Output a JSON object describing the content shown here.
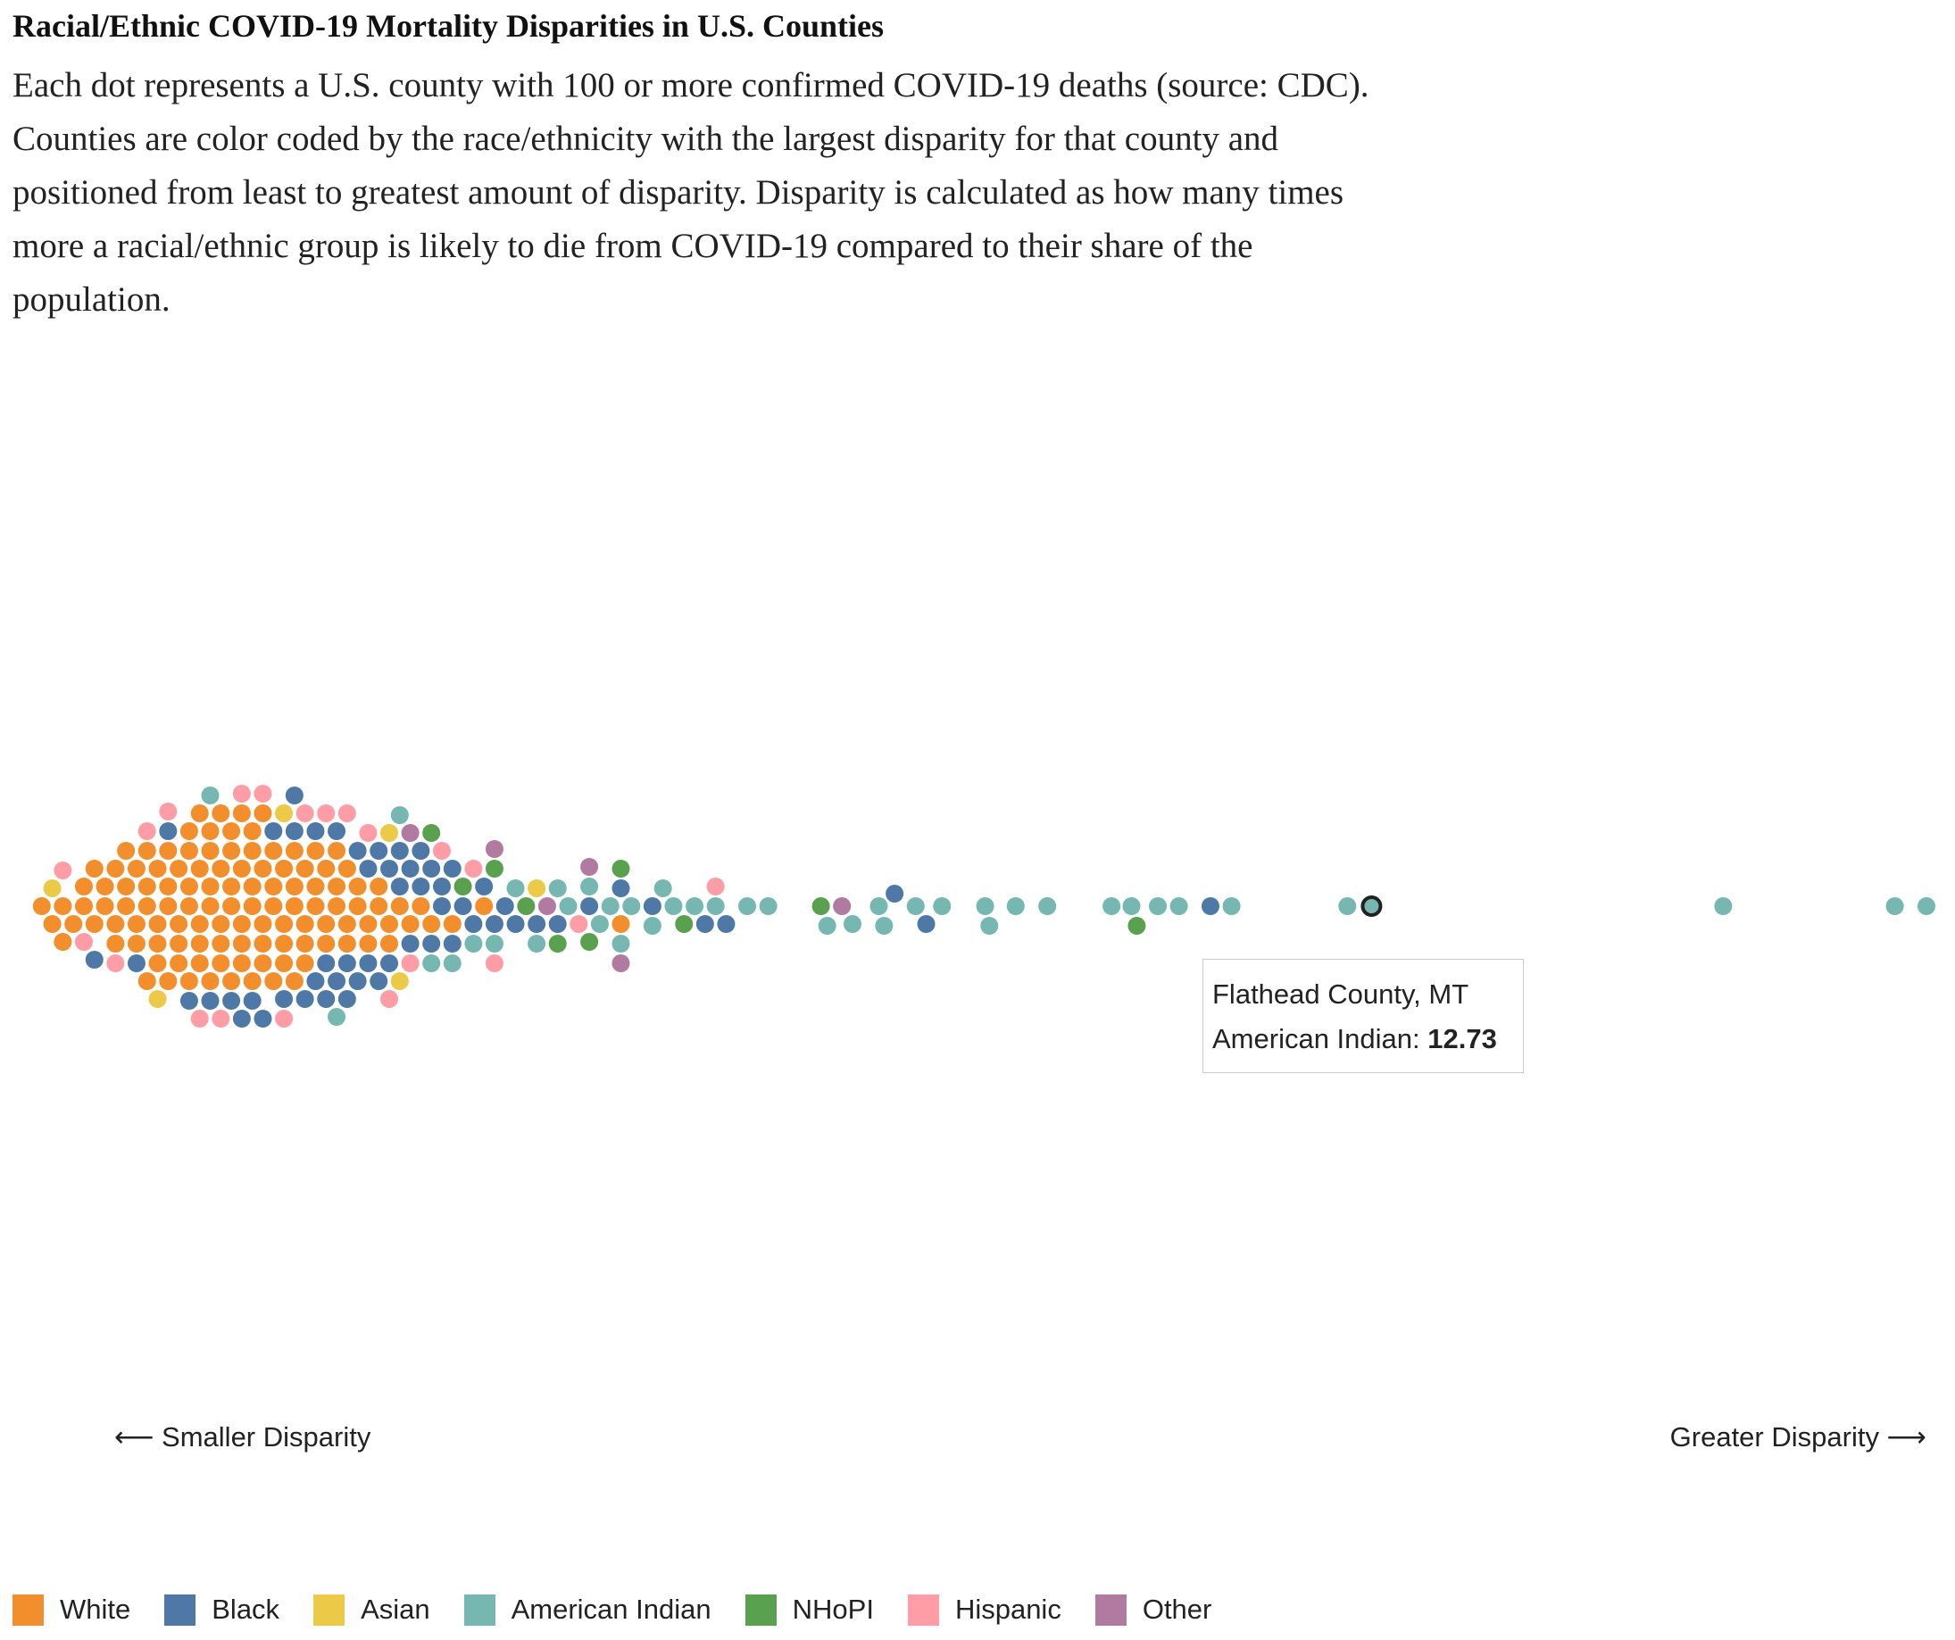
{
  "chart_data": {
    "type": "beeswarm",
    "title": "Racial/Ethnic COVID-19 Mortality Disparities in U.S. Counties",
    "subtitle": "Each dot represents a U.S. county with 100 or more confirmed COVID-19 deaths (source: CDC). Counties are color coded by the race/ethnicity with the largest disparity for that county and positioned from least to greatest amount of disparity. Disparity is calculated as how many times more a racial/ethnic group is likely to die from COVID-19 compared to their share of the population.",
    "left_label": "⟵ Smaller Disparity",
    "right_label": "Greater Disparity ⟶",
    "xlim": [
      0,
      18
    ],
    "legend": "bottom-left",
    "series": [
      {
        "name": "White",
        "color": "#f28e2b",
        "values": [
          0.1,
          0.2,
          0.3,
          0.3,
          0.4,
          0.5,
          0.5,
          0.6,
          0.6,
          0.7,
          0.7,
          0.8,
          0.8,
          0.8,
          0.9,
          0.9,
          0.9,
          1.0,
          1.0,
          1.0,
          1.1,
          1.1,
          1.1,
          1.1,
          1.2,
          1.2,
          1.2,
          1.2,
          1.3,
          1.3,
          1.3,
          1.3,
          1.4,
          1.4,
          1.4,
          1.4,
          1.5,
          1.5,
          1.5,
          1.5,
          1.5,
          1.6,
          1.6,
          1.6,
          1.6,
          1.6,
          1.7,
          1.7,
          1.7,
          1.7,
          1.7,
          1.8,
          1.8,
          1.8,
          1.8,
          1.8,
          1.9,
          1.9,
          1.9,
          1.9,
          1.9,
          2.0,
          2.0,
          2.0,
          2.0,
          2.0,
          2.1,
          2.1,
          2.1,
          2.1,
          2.1,
          2.2,
          2.2,
          2.2,
          2.2,
          2.2,
          2.3,
          2.3,
          2.3,
          2.3,
          2.4,
          2.4,
          2.4,
          2.4,
          2.5,
          2.5,
          2.5,
          2.5,
          2.6,
          2.6,
          2.6,
          2.6,
          2.7,
          2.7,
          2.7,
          2.8,
          2.8,
          2.8,
          2.9,
          2.9,
          2.9,
          3.0,
          3.0,
          3.0,
          3.1,
          3.1,
          3.2,
          3.2,
          3.3,
          3.3,
          3.4,
          3.4,
          3.5,
          3.6,
          3.7,
          3.8,
          4.0,
          4.3,
          5.6
        ]
      },
      {
        "name": "Black",
        "color": "#4e79a7",
        "values": [
          0.6,
          1.0,
          1.3,
          1.5,
          1.7,
          1.9,
          2.0,
          2.1,
          2.2,
          2.3,
          2.4,
          2.5,
          2.5,
          2.6,
          2.7,
          2.7,
          2.8,
          2.8,
          2.9,
          2.9,
          3.0,
          3.0,
          3.1,
          3.1,
          3.2,
          3.2,
          3.3,
          3.3,
          3.4,
          3.4,
          3.5,
          3.5,
          3.6,
          3.6,
          3.7,
          3.7,
          3.8,
          3.8,
          3.9,
          3.9,
          4.0,
          4.0,
          4.1,
          4.2,
          4.3,
          4.4,
          4.5,
          4.6,
          4.8,
          5.0,
          5.3,
          5.6,
          5.9,
          6.4,
          6.6,
          8.2,
          8.5,
          11.2
        ]
      },
      {
        "name": "Asian",
        "color": "#edc948",
        "values": [
          0.2,
          1.2,
          2.4,
          3.4,
          3.5,
          4.8
        ]
      },
      {
        "name": "American Indian",
        "color": "#76b7b2",
        "values": [
          1.7,
          2.9,
          3.5,
          3.8,
          4.0,
          4.2,
          4.4,
          4.6,
          4.8,
          5.0,
          5.1,
          5.3,
          5.4,
          5.5,
          5.6,
          5.7,
          5.9,
          6.0,
          6.1,
          6.3,
          6.5,
          6.8,
          7.0,
          7.56,
          7.8,
          8.05,
          8.1,
          8.4,
          8.65,
          9.06,
          9.1,
          9.35,
          9.65,
          10.26,
          10.45,
          10.7,
          10.9,
          11.4,
          12.5,
          16.07,
          17.7,
          18.0
        ]
      },
      {
        "name": "NHoPI",
        "color": "#59a14f",
        "values": [
          3.8,
          4.1,
          4.4,
          4.7,
          5.0,
          5.3,
          5.6,
          6.2,
          7.5,
          10.5
        ]
      },
      {
        "name": "Hispanic",
        "color": "#ff9da7",
        "values": [
          0.3,
          0.5,
          0.8,
          1.1,
          1.3,
          1.6,
          1.8,
          2.0,
          2.2,
          2.4,
          2.6,
          2.8,
          3.0,
          3.2,
          3.4,
          3.6,
          3.9,
          4.2,
          4.4,
          5.2,
          6.5
        ]
      },
      {
        "name": "Other",
        "color": "#b07aa1",
        "values": [
          3.6,
          4.4,
          4.9,
          5.3,
          5.6,
          7.7
        ]
      }
    ],
    "tooltip": {
      "county": "Flathead County, MT",
      "label": "American Indian:",
      "value": 12.73,
      "series": "American Indian"
    }
  }
}
